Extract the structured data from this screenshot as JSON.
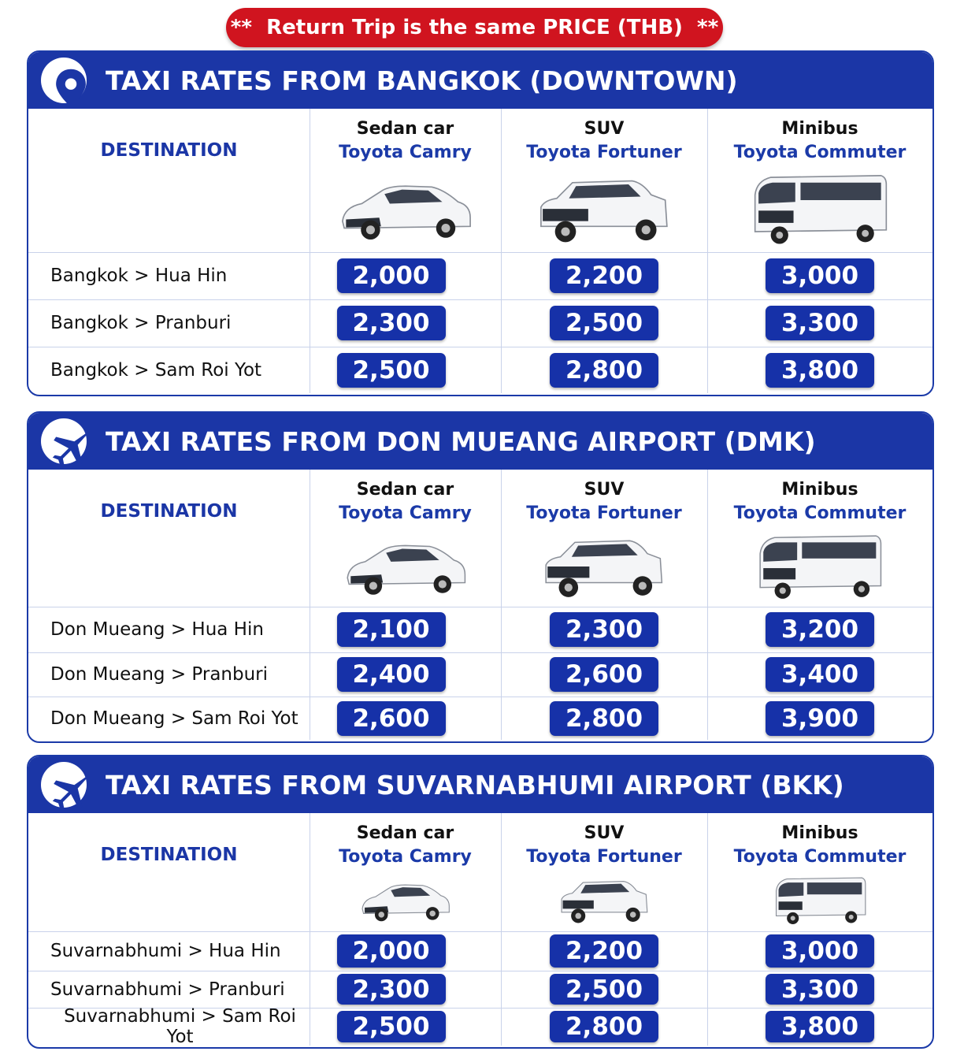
{
  "banner": "**  Return Trip is the same PRICE (THB)  **",
  "sections": [
    {
      "title": "TAXI RATES FROM BANGKOK (DOWNTOWN)",
      "destination_header": "DESTINATION",
      "columns": [
        {
          "type": "Sedan car",
          "model": "Toyota Camry"
        },
        {
          "type": "SUV",
          "model": "Toyota Fortuner"
        },
        {
          "type": "Minibus",
          "model": "Toyota Commuter"
        }
      ],
      "rows": [
        {
          "destination": "Bangkok > Hua Hin",
          "prices": [
            "2,000",
            "2,200",
            "3,000"
          ]
        },
        {
          "destination": "Bangkok > Pranburi",
          "prices": [
            "2,300",
            "2,500",
            "3,300"
          ]
        },
        {
          "destination": "Bangkok > Sam Roi Yot",
          "prices": [
            "2,500",
            "2,800",
            "3,800"
          ]
        }
      ]
    },
    {
      "title": "TAXI RATES FROM DON MUEANG AIRPORT (DMK)",
      "destination_header": "DESTINATION",
      "columns": [
        {
          "type": "Sedan car",
          "model": "Toyota Camry"
        },
        {
          "type": "SUV",
          "model": "Toyota Fortuner"
        },
        {
          "type": "Minibus",
          "model": "Toyota Commuter"
        }
      ],
      "rows": [
        {
          "destination": "Don Mueang > Hua Hin",
          "prices": [
            "2,100",
            "2,300",
            "3,200"
          ]
        },
        {
          "destination": "Don Mueang > Pranburi",
          "prices": [
            "2,400",
            "2,600",
            "3,400"
          ]
        },
        {
          "destination": "Don Mueang > Sam Roi Yot",
          "prices": [
            "2,600",
            "2,800",
            "3,900"
          ]
        }
      ]
    },
    {
      "title": "TAXI RATES FROM SUVARNABHUMI AIRPORT (BKK)",
      "destination_header": "DESTINATION",
      "columns": [
        {
          "type": "Sedan car",
          "model": "Toyota Camry"
        },
        {
          "type": "SUV",
          "model": "Toyota Fortuner"
        },
        {
          "type": "Minibus",
          "model": "Toyota Commuter"
        }
      ],
      "rows": [
        {
          "destination": "Suvarnabhumi > Hua Hin",
          "prices": [
            "2,000",
            "2,200",
            "3,000"
          ]
        },
        {
          "destination": "Suvarnabhumi > Pranburi",
          "prices": [
            "2,300",
            "2,500",
            "3,300"
          ]
        },
        {
          "destination": "Suvarnabhumi > Sam Roi Yot",
          "prices": [
            "2,500",
            "2,800",
            "3,800"
          ]
        }
      ]
    }
  ]
}
